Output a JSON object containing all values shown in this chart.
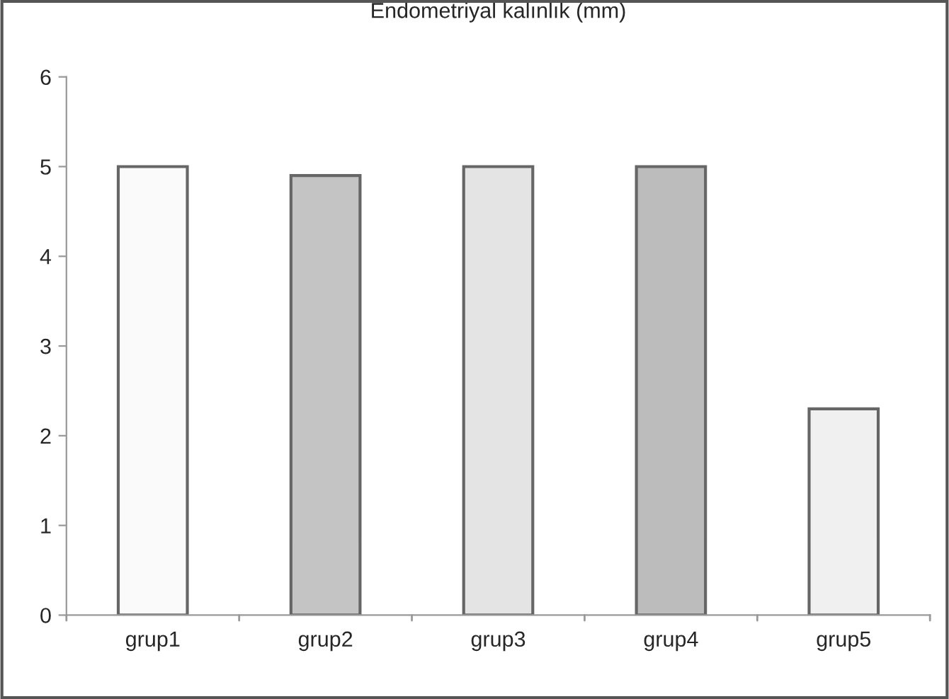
{
  "chart_data": {
    "type": "bar",
    "title": "Endometriyal kalınlık (mm)",
    "categories": [
      "grup1",
      "grup2",
      "grup3",
      "grup4",
      "grup5"
    ],
    "values": [
      5.0,
      4.9,
      5.0,
      5.0,
      2.3
    ],
    "colors": [
      "#fafafa",
      "#c4c4c4",
      "#e4e4e4",
      "#bcbcbc",
      "#f0f0f0"
    ],
    "ylim": [
      0,
      6
    ],
    "yticks": [
      0,
      1,
      2,
      3,
      4,
      5,
      6
    ],
    "grid": false,
    "legend": false
  }
}
